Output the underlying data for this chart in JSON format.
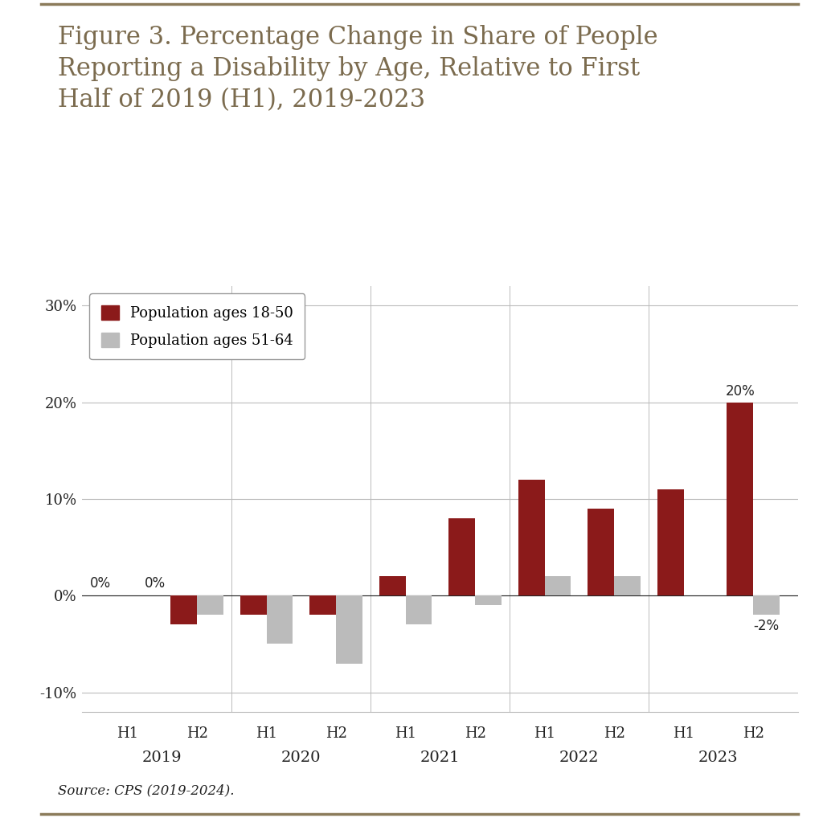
{
  "title_line1": "Figure 3. Percentage Change in Share of People",
  "title_line2": "Reporting a Disability by Age, Relative to First",
  "title_line3": "Half of 2019 (H1), 2019-2023",
  "source_text": "Source: CPS (2019-2024).",
  "half_labels": [
    "H1",
    "H2",
    "H1",
    "H2",
    "H1",
    "H2",
    "H1",
    "H2",
    "H1",
    "H2"
  ],
  "year_labels": [
    "2019",
    "2020",
    "2021",
    "2022",
    "2023"
  ],
  "year_positions": [
    0.5,
    2.5,
    4.5,
    6.5,
    8.5
  ],
  "series1_name": "Population ages 18-50",
  "series2_name": "Population ages 51-64",
  "series1_values": [
    0,
    -3,
    -2,
    -2,
    2,
    8,
    12,
    9,
    11,
    20
  ],
  "series2_values": [
    0,
    -2,
    -5,
    -7,
    -3,
    -1,
    2,
    2,
    0,
    -2
  ],
  "series1_color": "#8B1A1A",
  "series2_color": "#BBBBBB",
  "ylim": [
    -12,
    32
  ],
  "yticks": [
    -10,
    0,
    10,
    20,
    30
  ],
  "ytick_labels": [
    "-10%",
    "0%",
    "10%",
    "20%",
    "30%"
  ],
  "bar_width": 0.38,
  "title_color": "#7B6B4E",
  "background_color": "#FFFFFF",
  "grid_color": "#BBBBBB",
  "border_color": "#8B7B5A",
  "font_color": "#222222",
  "title_fontsize": 22,
  "axis_fontsize": 13,
  "legend_fontsize": 13,
  "annotation_fontsize": 12
}
